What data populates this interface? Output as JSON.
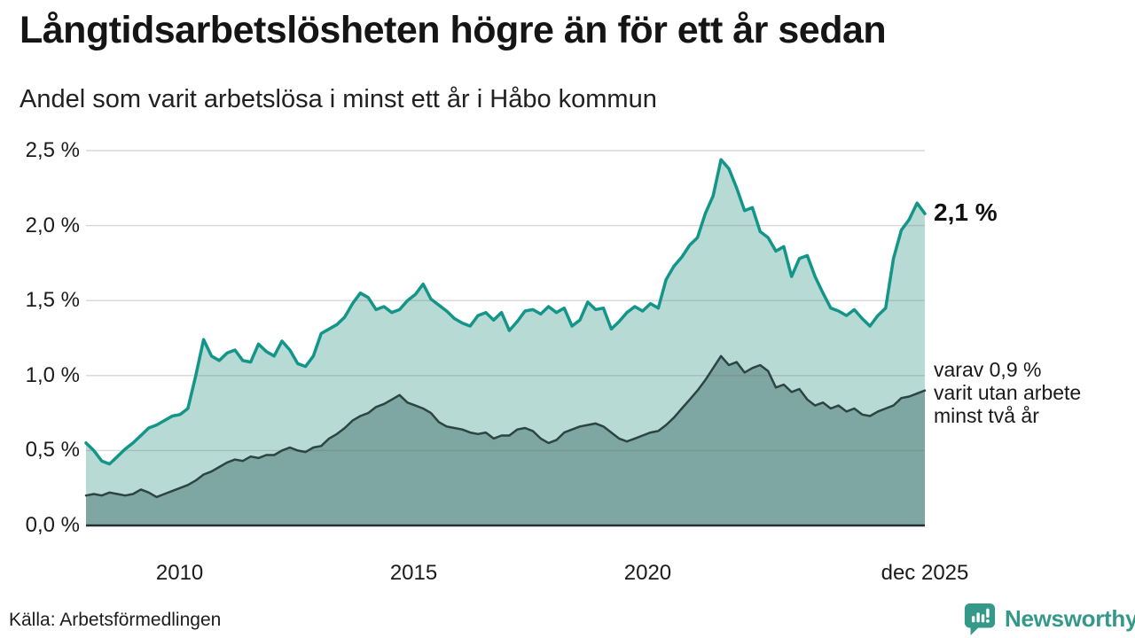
{
  "header": {
    "title": "Långtidsarbetslösheten högre än för ett år sedan",
    "subtitle": "Andel som varit arbetslösa i minst ett år i Håbo kommun"
  },
  "chart_data": {
    "type": "area",
    "title": "Långtidsarbetslösheten högre än för ett år sedan",
    "subtitle": "Andel som varit arbetslösa i minst ett år i Håbo kommun",
    "unit": "%",
    "grid": true,
    "ylim": [
      0,
      2.5
    ],
    "x_range": [
      2008.0,
      2025.92
    ],
    "x_ticks": [
      {
        "pos": 2010,
        "label": "2010"
      },
      {
        "pos": 2015,
        "label": "2015"
      },
      {
        "pos": 2020,
        "label": "2020"
      },
      {
        "pos": 2025.92,
        "label": "dec 2025"
      }
    ],
    "y_ticks": [
      {
        "value": 0.0,
        "label": "0,0 %"
      },
      {
        "value": 0.5,
        "label": "0,5 %"
      },
      {
        "value": 1.0,
        "label": "1,0 %"
      },
      {
        "value": 1.5,
        "label": "1,5 %"
      },
      {
        "value": 2.0,
        "label": "2,0 %"
      },
      {
        "value": 2.5,
        "label": "2,5 %"
      }
    ],
    "series": [
      {
        "name": "Andel som varit arbetslösa i minst ett år",
        "line_color": "#14958a",
        "fill_color": "#b7dbd4",
        "line_width": 3.5,
        "end_value": 2.1,
        "end_label_lines": [
          "2,1 %"
        ],
        "values": [
          0.55,
          0.5,
          0.43,
          0.41,
          0.46,
          0.51,
          0.55,
          0.6,
          0.65,
          0.67,
          0.7,
          0.73,
          0.74,
          0.78,
          1.0,
          1.24,
          1.13,
          1.1,
          1.15,
          1.17,
          1.1,
          1.09,
          1.21,
          1.16,
          1.13,
          1.23,
          1.17,
          1.08,
          1.06,
          1.13,
          1.28,
          1.31,
          1.34,
          1.39,
          1.48,
          1.55,
          1.52,
          1.44,
          1.46,
          1.42,
          1.44,
          1.5,
          1.54,
          1.61,
          1.51,
          1.47,
          1.43,
          1.38,
          1.35,
          1.33,
          1.4,
          1.42,
          1.37,
          1.42,
          1.3,
          1.36,
          1.43,
          1.44,
          1.41,
          1.46,
          1.42,
          1.45,
          1.33,
          1.37,
          1.49,
          1.44,
          1.45,
          1.31,
          1.36,
          1.42,
          1.46,
          1.43,
          1.48,
          1.45,
          1.64,
          1.73,
          1.79,
          1.87,
          1.92,
          2.08,
          2.2,
          2.44,
          2.38,
          2.25,
          2.1,
          2.12,
          1.96,
          1.92,
          1.83,
          1.86,
          1.66,
          1.78,
          1.8,
          1.66,
          1.55,
          1.45,
          1.43,
          1.4,
          1.44,
          1.38,
          1.33,
          1.4,
          1.45,
          1.78,
          1.97,
          2.04,
          2.15,
          2.08
        ]
      },
      {
        "name": "Varav utan arbete minst två år",
        "line_color": "#2c4543",
        "fill_color": "#7ea6a2",
        "line_width": 2.5,
        "end_value": 0.9,
        "end_label_lines": [
          "varav 0,9 %",
          "varit utan arbete",
          "minst två år"
        ],
        "values": [
          0.2,
          0.21,
          0.2,
          0.22,
          0.21,
          0.2,
          0.21,
          0.24,
          0.22,
          0.19,
          0.21,
          0.23,
          0.25,
          0.27,
          0.3,
          0.34,
          0.36,
          0.39,
          0.42,
          0.44,
          0.43,
          0.46,
          0.45,
          0.47,
          0.47,
          0.5,
          0.52,
          0.5,
          0.49,
          0.52,
          0.53,
          0.58,
          0.61,
          0.65,
          0.7,
          0.73,
          0.75,
          0.79,
          0.81,
          0.84,
          0.87,
          0.82,
          0.8,
          0.78,
          0.75,
          0.69,
          0.66,
          0.65,
          0.64,
          0.62,
          0.61,
          0.62,
          0.58,
          0.6,
          0.6,
          0.64,
          0.65,
          0.63,
          0.58,
          0.55,
          0.57,
          0.62,
          0.64,
          0.66,
          0.67,
          0.68,
          0.66,
          0.62,
          0.58,
          0.56,
          0.58,
          0.6,
          0.62,
          0.63,
          0.67,
          0.72,
          0.78,
          0.84,
          0.9,
          0.97,
          1.05,
          1.13,
          1.07,
          1.09,
          1.02,
          1.05,
          1.07,
          1.03,
          0.92,
          0.94,
          0.89,
          0.91,
          0.84,
          0.8,
          0.82,
          0.78,
          0.8,
          0.76,
          0.78,
          0.74,
          0.73,
          0.76,
          0.78,
          0.8,
          0.85,
          0.86,
          0.88,
          0.9
        ]
      }
    ],
    "colors": {
      "gridline": "#d9d9d9",
      "baseline": "#24302f",
      "accent_teal": "#14958a"
    }
  },
  "footer": {
    "source": "Källa: Arbetsförmedlingen",
    "brand_name": "Newsworthy",
    "brand_color": "#35998a"
  }
}
